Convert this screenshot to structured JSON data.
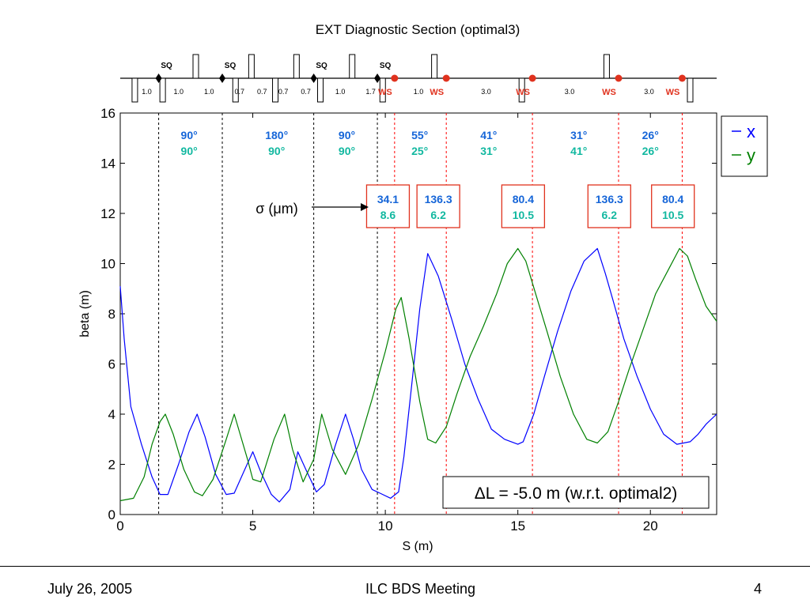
{
  "chart_data": {
    "type": "line",
    "title": "EXT Diagnostic Section (optimal3)",
    "xlabel": "S (m)",
    "ylabel": "beta (m)",
    "xlim": [
      0,
      22.5
    ],
    "ylim": [
      0,
      16
    ],
    "xticks": [
      0,
      5,
      10,
      15,
      20
    ],
    "yticks": [
      0,
      2,
      4,
      6,
      8,
      10,
      12,
      14,
      16
    ],
    "legend": {
      "placement": "top-right"
    },
    "series": [
      {
        "name": "x",
        "color": "#0000ff",
        "x": [
          0,
          0.15,
          0.4,
          0.8,
          1.2,
          1.5,
          1.8,
          2.2,
          2.6,
          2.9,
          3.2,
          3.6,
          4.0,
          4.3,
          4.7,
          5.0,
          5.3,
          5.7,
          6.0,
          6.4,
          6.7,
          7.0,
          7.4,
          7.7,
          8.1,
          8.5,
          8.8,
          9.1,
          9.5,
          9.8,
          10.2,
          10.5,
          10.7,
          11.0,
          11.3,
          11.6,
          12.0,
          12.5,
          13.0,
          13.5,
          14.0,
          14.5,
          15.0,
          15.2,
          15.6,
          16.0,
          16.5,
          17.0,
          17.5,
          18.0,
          18.3,
          18.6,
          19.0,
          19.5,
          20.0,
          20.5,
          21.0,
          21.5,
          21.8,
          22.1,
          22.5
        ],
        "y": [
          9.1,
          7.0,
          4.3,
          2.8,
          1.5,
          0.8,
          0.8,
          2.0,
          3.3,
          4.0,
          3.1,
          1.6,
          0.8,
          0.85,
          1.8,
          2.5,
          1.7,
          0.8,
          0.5,
          1.0,
          2.5,
          1.8,
          0.9,
          1.2,
          2.7,
          4.0,
          3.0,
          1.8,
          1.0,
          0.85,
          0.65,
          0.9,
          2.3,
          5.2,
          8.2,
          10.4,
          9.5,
          7.8,
          6.0,
          4.6,
          3.4,
          3.0,
          2.8,
          2.9,
          4.0,
          5.5,
          7.3,
          8.9,
          10.1,
          10.6,
          9.6,
          8.5,
          7.0,
          5.5,
          4.2,
          3.2,
          2.8,
          2.9,
          3.2,
          3.6,
          4.0
        ]
      },
      {
        "name": "y",
        "color": "#008000",
        "x": [
          0,
          0.5,
          0.9,
          1.2,
          1.5,
          1.7,
          2.0,
          2.4,
          2.8,
          3.1,
          3.5,
          4.0,
          4.3,
          4.8,
          5.0,
          5.3,
          5.8,
          6.2,
          6.5,
          6.9,
          7.3,
          7.6,
          8.0,
          8.5,
          9.0,
          9.5,
          10.0,
          10.4,
          10.6,
          10.9,
          11.3,
          11.6,
          11.9,
          12.3,
          12.7,
          13.2,
          13.7,
          14.2,
          14.6,
          15.0,
          15.3,
          15.7,
          16.1,
          16.6,
          17.1,
          17.6,
          18.0,
          18.4,
          18.8,
          19.2,
          19.7,
          20.2,
          20.7,
          21.1,
          21.4,
          21.7,
          22.1,
          22.5
        ],
        "y": [
          0.55,
          0.65,
          1.5,
          2.8,
          3.7,
          4.0,
          3.2,
          1.8,
          0.9,
          0.75,
          1.4,
          3.0,
          4.0,
          2.2,
          1.4,
          1.3,
          3.0,
          4.0,
          2.6,
          1.3,
          2.2,
          4.0,
          2.6,
          1.6,
          2.8,
          4.6,
          6.5,
          8.2,
          8.65,
          7.0,
          4.5,
          3.0,
          2.85,
          3.5,
          4.8,
          6.3,
          7.5,
          8.8,
          10.0,
          10.6,
          10.1,
          8.7,
          7.3,
          5.5,
          4.0,
          3.0,
          2.85,
          3.3,
          4.5,
          5.8,
          7.3,
          8.8,
          9.8,
          10.6,
          10.3,
          9.4,
          8.3,
          7.7
        ]
      }
    ],
    "vlines": [
      {
        "x": 1.45,
        "color": "#000000"
      },
      {
        "x": 3.85,
        "color": "#000000"
      },
      {
        "x": 7.3,
        "color": "#000000"
      },
      {
        "x": 9.7,
        "color": "#000000"
      },
      {
        "x": 10.35,
        "color": "#ff0000"
      },
      {
        "x": 12.3,
        "color": "#ff0000"
      },
      {
        "x": 15.55,
        "color": "#ff0000"
      },
      {
        "x": 18.8,
        "color": "#ff0000"
      },
      {
        "x": 21.2,
        "color": "#ff0000"
      }
    ],
    "phase_labels": [
      {
        "x": 2.6,
        "x_text": "90°",
        "y_text": "90°"
      },
      {
        "x": 5.9,
        "x_text": "180°",
        "y_text": "90°"
      },
      {
        "x": 8.55,
        "x_text": "90°",
        "y_text": "90°"
      },
      {
        "x": 11.3,
        "x_text": "55°",
        "y_text": "25°"
      },
      {
        "x": 13.9,
        "x_text": "41°",
        "y_text": "31°"
      },
      {
        "x": 17.3,
        "x_text": "31°",
        "y_text": "41°"
      },
      {
        "x": 20.0,
        "x_text": "26°",
        "y_text": "26°"
      }
    ],
    "sigma_boxes": [
      {
        "x": 10.1,
        "x_val": "34.1",
        "y_val": "8.6"
      },
      {
        "x": 12.0,
        "x_val": "136.3",
        "y_val": "6.2"
      },
      {
        "x": 15.2,
        "x_val": "80.4",
        "y_val": "10.5"
      },
      {
        "x": 18.45,
        "x_val": "136.3",
        "y_val": "6.2"
      },
      {
        "x": 20.85,
        "x_val": "80.4",
        "y_val": "10.5"
      }
    ],
    "sigma_label": "σ (μm)",
    "annotation": "ΔL = -5.0 m (w.r.t. optimal2)",
    "colors": {
      "x_text": "#1565d8",
      "y_text": "#12b8a0",
      "ws": "#e0321e"
    }
  },
  "lattice": {
    "magnets": [
      {
        "x": 0.55,
        "dir": "down"
      },
      {
        "x": 1.6,
        "dir": "down"
      },
      {
        "x": 2.85,
        "dir": "up"
      },
      {
        "x": 4.35,
        "dir": "down"
      },
      {
        "x": 4.95,
        "dir": "up"
      },
      {
        "x": 5.85,
        "dir": "down"
      },
      {
        "x": 6.65,
        "dir": "up"
      },
      {
        "x": 7.55,
        "dir": "down"
      },
      {
        "x": 8.75,
        "dir": "up"
      },
      {
        "x": 9.9,
        "dir": "down"
      },
      {
        "x": 11.85,
        "dir": "up"
      },
      {
        "x": 15.15,
        "dir": "down"
      },
      {
        "x": 18.35,
        "dir": "up"
      },
      {
        "x": 21.5,
        "dir": "down"
      }
    ],
    "sq_markers": [
      {
        "x": 1.45,
        "label": "SQ"
      },
      {
        "x": 3.85,
        "label": "SQ"
      },
      {
        "x": 7.3,
        "label": "SQ"
      },
      {
        "x": 9.7,
        "label": "SQ"
      }
    ],
    "ws_markers": [
      {
        "x": 10.35,
        "label": "WS"
      },
      {
        "x": 12.3,
        "label": "WS"
      },
      {
        "x": 15.55,
        "label": "WS"
      },
      {
        "x": 18.8,
        "label": "WS"
      },
      {
        "x": 21.2,
        "label": "WS"
      }
    ],
    "lengths": [
      {
        "x": 1.0,
        "text": "1.0"
      },
      {
        "x": 2.2,
        "text": "1.0"
      },
      {
        "x": 3.35,
        "text": "1.0"
      },
      {
        "x": 4.5,
        "text": "0.7"
      },
      {
        "x": 5.35,
        "text": "0.7"
      },
      {
        "x": 6.15,
        "text": "0.7"
      },
      {
        "x": 7.0,
        "text": "0.7"
      },
      {
        "x": 8.3,
        "text": "1.0"
      },
      {
        "x": 9.45,
        "text": "1.7"
      },
      {
        "x": 11.25,
        "text": "1.0"
      },
      {
        "x": 13.8,
        "text": "3.0"
      },
      {
        "x": 16.95,
        "text": "3.0"
      },
      {
        "x": 19.95,
        "text": "3.0"
      }
    ]
  },
  "footer": {
    "date": "July 26, 2005",
    "meeting": "ILC BDS Meeting",
    "page": "4"
  }
}
